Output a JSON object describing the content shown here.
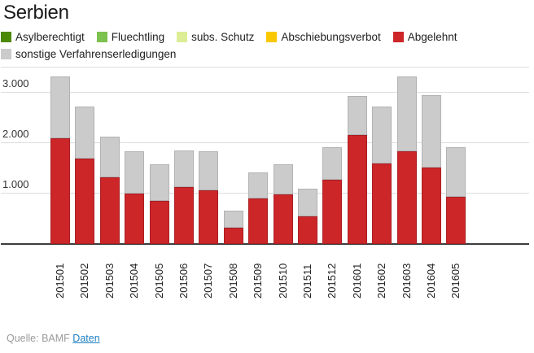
{
  "title": "Serbien",
  "chart_data": {
    "type": "bar",
    "stacked": true,
    "title": "Serbien",
    "xlabel": "",
    "ylabel": "",
    "ylim": [
      0,
      3500
    ],
    "grid": true,
    "legend_position": "top",
    "categories": [
      "201501",
      "201502",
      "201503",
      "201504",
      "201505",
      "201506",
      "201507",
      "201508",
      "201509",
      "201510",
      "201511",
      "201512",
      "201601",
      "201602",
      "201603",
      "201604",
      "201605"
    ],
    "series": [
      {
        "name": "Asylberechtigt",
        "color": "#4c8a06",
        "border": "#3e7205",
        "values": [
          0,
          0,
          0,
          0,
          0,
          0,
          0,
          0,
          0,
          0,
          0,
          0,
          0,
          0,
          0,
          0,
          0
        ]
      },
      {
        "name": "Fluechtling",
        "color": "#7dc14e",
        "border": "#68a93e",
        "values": [
          0,
          0,
          0,
          0,
          0,
          0,
          0,
          0,
          0,
          0,
          0,
          0,
          0,
          0,
          0,
          0,
          0
        ]
      },
      {
        "name": "subs. Schutz",
        "color": "#dbee96",
        "border": "#c2d97e",
        "values": [
          0,
          0,
          0,
          0,
          0,
          0,
          0,
          0,
          0,
          0,
          0,
          0,
          0,
          0,
          0,
          0,
          0
        ]
      },
      {
        "name": "Abschiebungsverbot",
        "color": "#f9c800",
        "border": "#dfb000",
        "values": [
          0,
          0,
          0,
          0,
          0,
          0,
          0,
          0,
          0,
          0,
          0,
          0,
          0,
          0,
          0,
          0,
          0
        ]
      },
      {
        "name": "Abgelehnt",
        "color": "#cc2629",
        "border": "#ab1f23",
        "values": [
          2090,
          1690,
          1320,
          1000,
          850,
          1130,
          1060,
          330,
          900,
          980,
          550,
          1270,
          2160,
          1600,
          1840,
          1520,
          930
        ]
      },
      {
        "name": "sonstige Verfahrenserledigungen",
        "color": "#cbcbcb",
        "border": "#b2b2b2",
        "values": [
          1230,
          1040,
          810,
          840,
          730,
          730,
          780,
          330,
          520,
          600,
          550,
          650,
          770,
          1130,
          1480,
          1430,
          990
        ]
      }
    ],
    "yticks": [
      {
        "value": 1000,
        "label": "1.000"
      },
      {
        "value": 2000,
        "label": "2.000"
      },
      {
        "value": 3000,
        "label": "3.000"
      },
      {
        "value": 3500,
        "label": ""
      }
    ]
  },
  "footer": {
    "source_prefix": "Quelle: BAMF",
    "link_label": "Daten",
    "link_color": "#1d7fc2",
    "text_color": "#9a9a9a"
  }
}
